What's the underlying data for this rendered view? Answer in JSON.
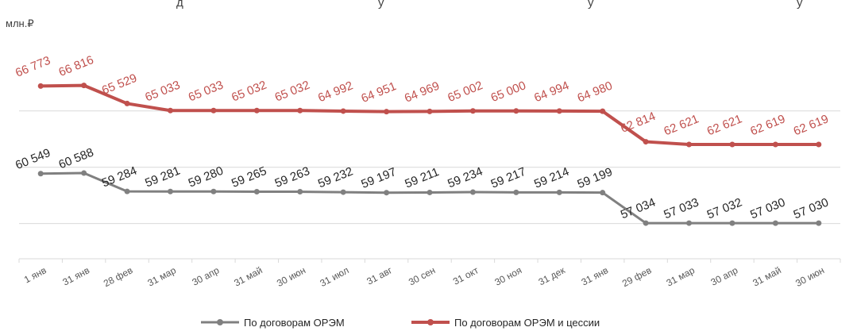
{
  "chart_data": {
    "type": "line",
    "title": "",
    "ylabel": "млн.₽",
    "xlabel": "",
    "ylim": [
      54500,
      69500
    ],
    "grid": true,
    "legend": "bottom",
    "categories": [
      "1 янв",
      "31 янв",
      "28 фев",
      "31 мар",
      "30 апр",
      "31 май",
      "30 июн",
      "31 июл",
      "31 авг",
      "30 сен",
      "31 окт",
      "30 ноя",
      "31 дек",
      "31 янв",
      "29 фев",
      "31 мар",
      "30 апр",
      "31 май",
      "30 июн"
    ],
    "series": [
      {
        "name": "По договорам ОРЭМ",
        "color": "#808080",
        "values": [
          60549,
          60588,
          59284,
          59281,
          59280,
          59265,
          59263,
          59232,
          59197,
          59211,
          59234,
          59217,
          59214,
          59199,
          57034,
          57033,
          57032,
          57030,
          57030
        ],
        "labels": [
          "60 549",
          "60 588",
          "59 284",
          "59 281",
          "59 280",
          "59 265",
          "59 263",
          "59 232",
          "59 197",
          "59 211",
          "59 234",
          "59 217",
          "59 214",
          "59 199",
          "57 034",
          "57 033",
          "57 032",
          "57 030",
          "57 030"
        ]
      },
      {
        "name": "По договорам ОРЭМ и цессии",
        "color": "#c0504d",
        "values": [
          66773,
          66816,
          65529,
          65033,
          65033,
          65032,
          65032,
          64992,
          64951,
          64969,
          65002,
          65000,
          64994,
          64980,
          62814,
          62621,
          62621,
          62619,
          62619
        ],
        "labels": [
          "66 773",
          "66 816",
          "65 529",
          "65 033",
          "65 033",
          "65 032",
          "65 032",
          "64 992",
          "64 951",
          "64 969",
          "65 002",
          "65 000",
          "64 994",
          "64 980",
          "62 814",
          "62 621",
          "62 621",
          "62 619",
          "62 619"
        ]
      }
    ],
    "title_fragments": [
      "д",
      "у",
      "у",
      "у"
    ]
  }
}
